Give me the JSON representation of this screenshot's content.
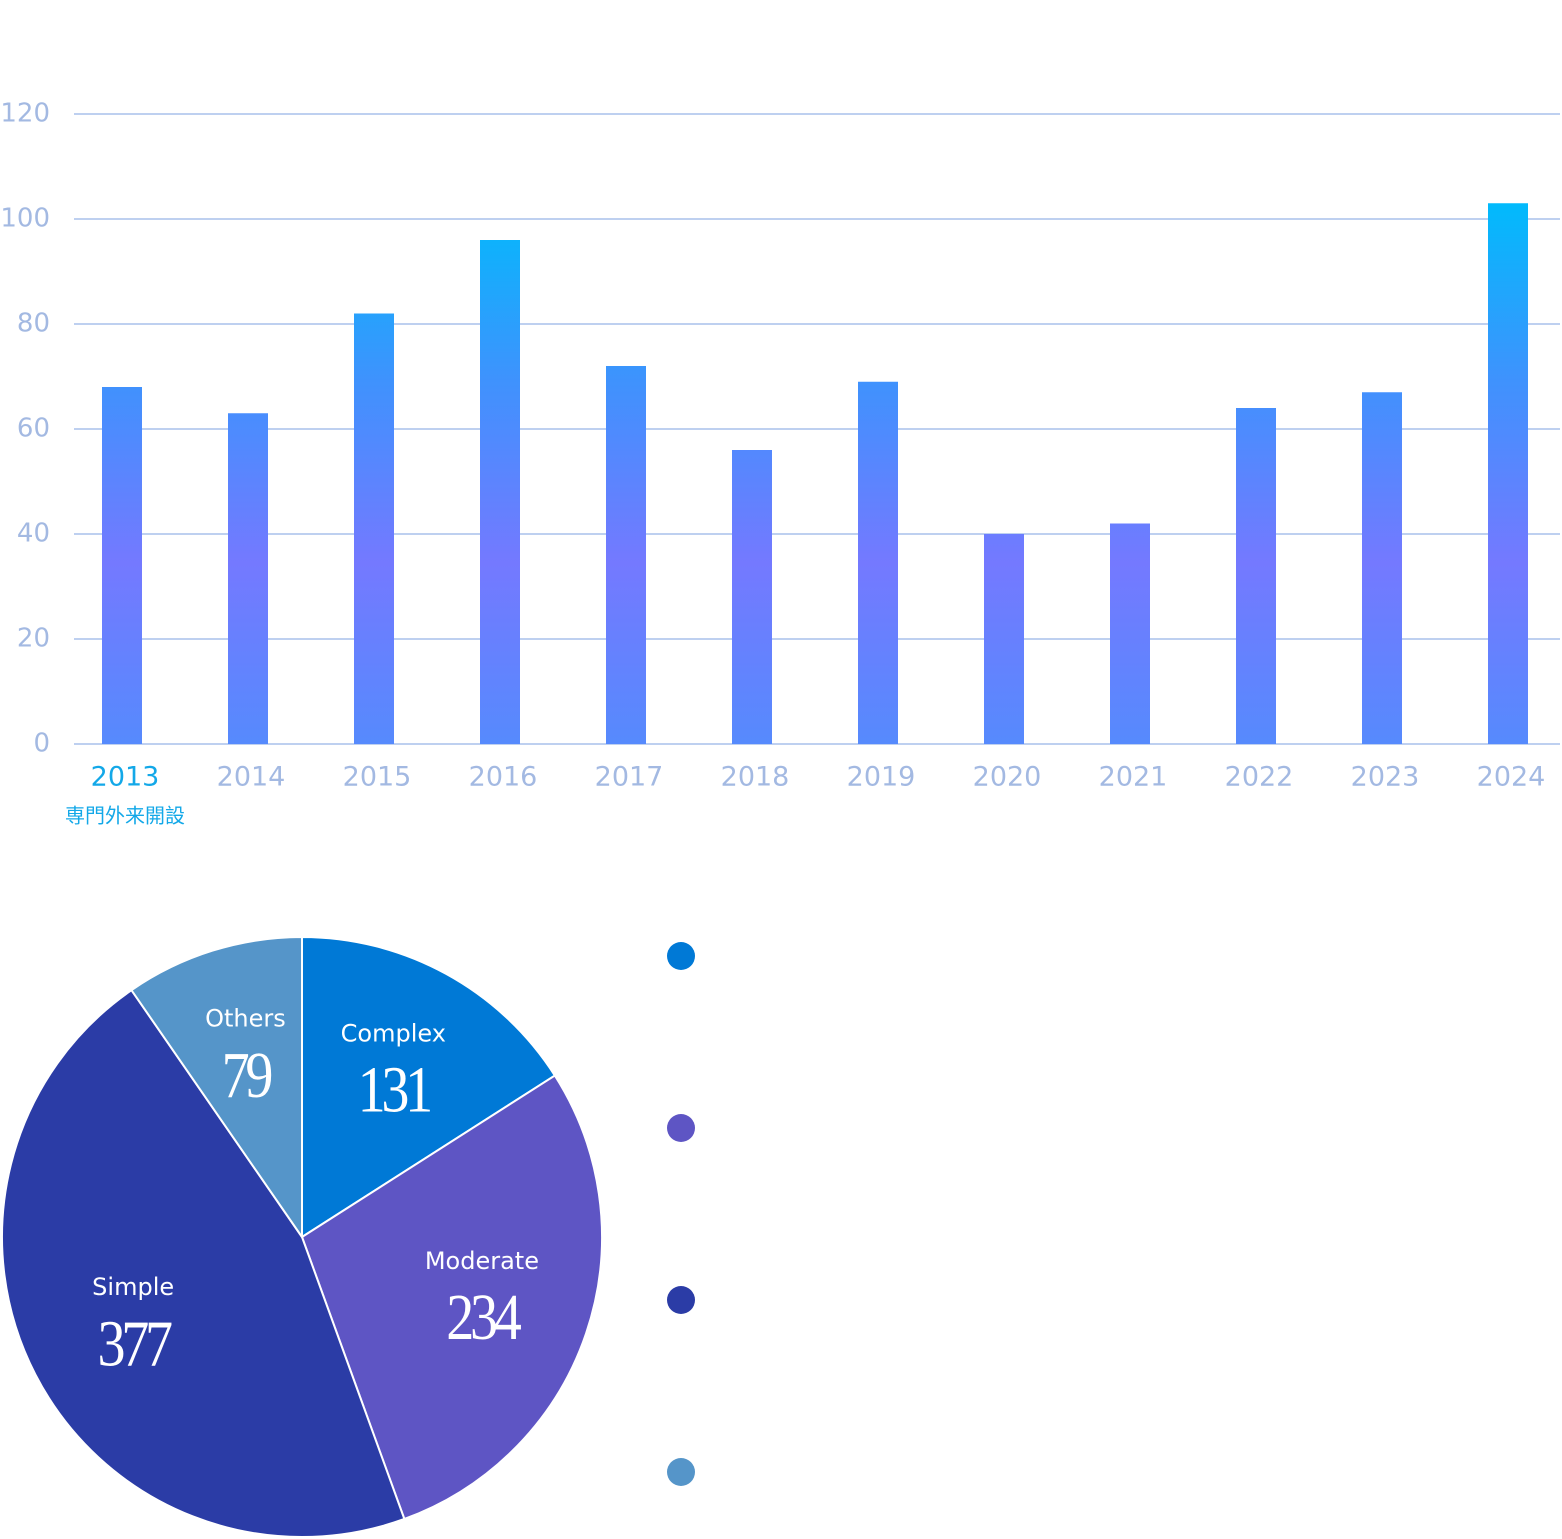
{
  "chart_data": [
    {
      "type": "bar",
      "categories": [
        "2013",
        "2014",
        "2015",
        "2016",
        "2017",
        "2018",
        "2019",
        "2020",
        "2021",
        "2022",
        "2023",
        "2024"
      ],
      "values": [
        68,
        63,
        82,
        96,
        72,
        56,
        69,
        40,
        42,
        64,
        67,
        103
      ],
      "gradient": [
        "#00bbfc",
        "#3f92fd",
        "#7479ff",
        "#568afd"
      ],
      "ylim": [
        0,
        120
      ],
      "yticks": [
        0,
        20,
        40,
        60,
        80,
        100,
        120
      ],
      "grid": true,
      "annotations": [
        {
          "text": "専門外来開設",
          "at": "2013",
          "color": "#13a8e8"
        }
      ]
    },
    {
      "type": "pie",
      "categories": [
        "Complex",
        "Moderate",
        "Simple",
        "Others"
      ],
      "values": [
        131,
        234,
        377,
        79
      ],
      "colors": [
        "#0079d6",
        "#5e55c4",
        "#2b3ca6",
        "#5595c9"
      ],
      "legend": "right"
    }
  ]
}
